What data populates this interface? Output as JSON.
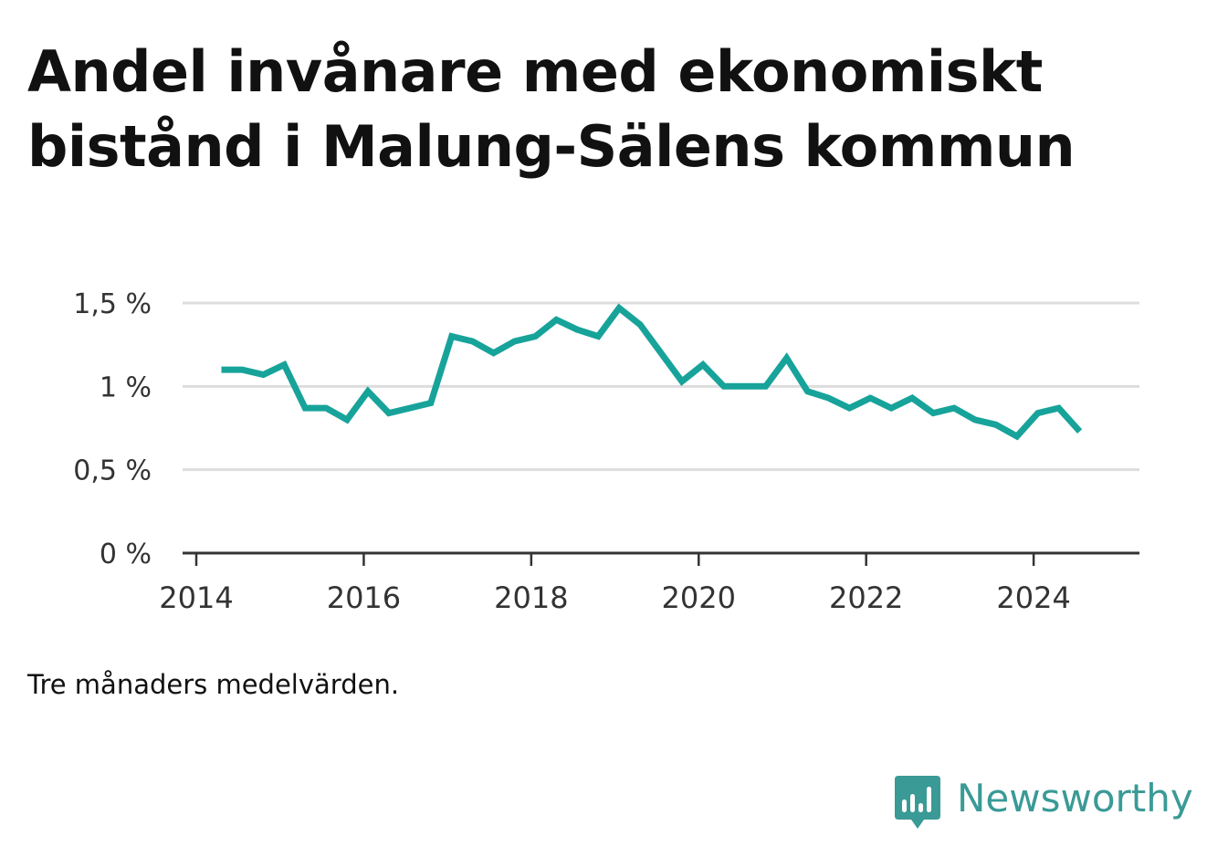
{
  "title": "Andel invånare med ekonomiskt bistånd i Malung-Sälens kommun",
  "note": "Tre månaders medelvärden.",
  "brand": {
    "name": "Newsworthy",
    "color": "#3a9a96"
  },
  "chart_data": {
    "type": "line",
    "title": "Andel invånare med ekonomiskt bistånd i Malung-Sälens kommun",
    "xlabel": "",
    "ylabel": "",
    "xlim": [
      2014,
      2025.1
    ],
    "ylim": [
      0,
      1.5
    ],
    "x_ticks": [
      2014,
      2016,
      2018,
      2020,
      2022,
      2024
    ],
    "x_tick_labels": [
      "2014",
      "2016",
      "2018",
      "2020",
      "2022",
      "2024"
    ],
    "y_ticks": [
      0,
      0.5,
      1,
      1.5
    ],
    "y_tick_labels": [
      "0 %",
      "0,5 %",
      "1 %",
      "1,5 %"
    ],
    "grid": true,
    "line_color": "#17a39a",
    "series": [
      {
        "x": [
          2014.3,
          2014.55,
          2014.8,
          2015.05,
          2015.3,
          2015.55,
          2015.8,
          2016.05,
          2016.3,
          2016.55,
          2016.8,
          2017.05,
          2017.3,
          2017.55,
          2017.8,
          2018.05,
          2018.3,
          2018.55,
          2018.8,
          2019.05,
          2019.3,
          2019.55,
          2019.8,
          2020.05,
          2020.3,
          2020.55,
          2020.8,
          2021.05,
          2021.3,
          2021.55,
          2021.8,
          2022.05,
          2022.3,
          2022.55,
          2022.8,
          2023.05,
          2023.3,
          2023.55,
          2023.8,
          2024.05,
          2024.3,
          2024.55
        ],
        "values": [
          1.1,
          1.1,
          1.07,
          1.13,
          0.87,
          0.87,
          0.8,
          0.97,
          0.84,
          0.87,
          0.9,
          1.3,
          1.27,
          1.2,
          1.27,
          1.3,
          1.4,
          1.34,
          1.3,
          1.47,
          1.37,
          1.2,
          1.03,
          1.13,
          1.0,
          1.0,
          1.0,
          1.17,
          0.97,
          0.93,
          0.87,
          0.93,
          0.87,
          0.93,
          0.84,
          0.87,
          0.8,
          0.77,
          0.7,
          0.84,
          0.87,
          0.73
        ]
      }
    ]
  }
}
